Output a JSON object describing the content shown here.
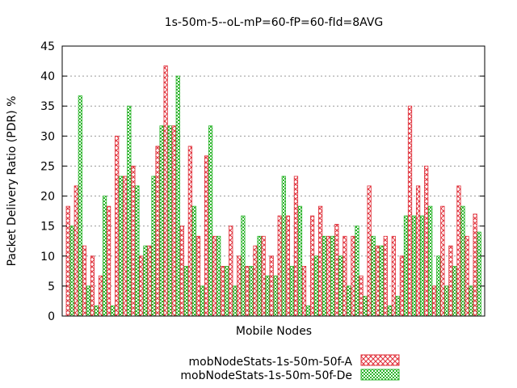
{
  "chart_data": {
    "type": "bar",
    "title": "1s-50m-5--oL-mP=60-fP=60-fId=8AVG",
    "xlabel": "Mobile Nodes",
    "ylabel": "Packet Delivery Ratio (PDR) %",
    "ylim": [
      0,
      45
    ],
    "yticks": [
      0,
      5,
      10,
      15,
      20,
      25,
      30,
      35,
      40,
      45
    ],
    "grid": "horizontal-dotted",
    "legend_position": "bottom-right",
    "series": [
      {
        "name": "mobNodeStats-1s-50m-50f-A",
        "color": "#e0303a",
        "pattern": "crosshatch",
        "values": [
          18.3,
          21.7,
          11.7,
          10.0,
          6.7,
          18.3,
          30.0,
          23.3,
          25.0,
          10.0,
          11.7,
          28.3,
          41.7,
          31.7,
          15.0,
          28.3,
          13.3,
          26.7,
          13.3,
          8.3,
          15.0,
          10.0,
          8.3,
          11.7,
          13.3,
          10.0,
          16.7,
          16.7,
          23.3,
          8.3,
          16.7,
          18.3,
          13.3,
          15.3,
          13.3,
          13.3,
          6.7,
          21.7,
          11.7,
          13.3,
          13.3,
          10.0,
          35.0,
          21.7,
          25.0,
          5.0,
          18.3,
          11.7,
          21.7,
          13.3,
          17.0
        ]
      },
      {
        "name": "mobNodeStats-1s-50m-50f-De",
        "color": "#2db52d",
        "pattern": "checker",
        "values": [
          15.0,
          36.7,
          5.0,
          1.7,
          20.0,
          1.7,
          23.3,
          35.0,
          21.7,
          11.7,
          23.3,
          31.7,
          31.7,
          40.0,
          8.3,
          18.3,
          5.0,
          31.7,
          13.3,
          8.3,
          5.0,
          16.7,
          8.3,
          13.3,
          6.7,
          6.7,
          23.3,
          8.3,
          18.3,
          1.7,
          10.0,
          13.3,
          13.3,
          10.0,
          5.0,
          15.0,
          3.3,
          13.3,
          11.7,
          1.7,
          3.3,
          16.7,
          16.7,
          16.7,
          18.3,
          10.0,
          5.0,
          8.3,
          18.3,
          5.0,
          14.0
        ]
      }
    ]
  }
}
